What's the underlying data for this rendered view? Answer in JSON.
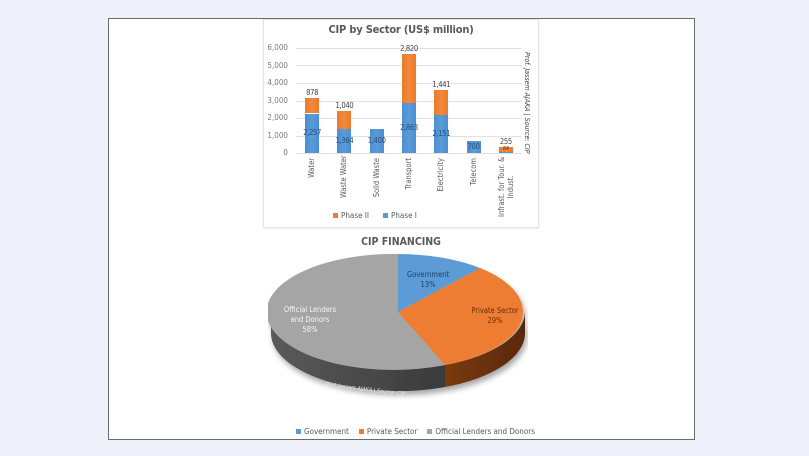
{
  "chart_data": [
    {
      "type": "bar",
      "stacked": true,
      "title": "CIP by Sector (US$ million)",
      "xlabel": "",
      "ylabel": "",
      "ylim": [
        0,
        6000
      ],
      "yticks": [
        "6,000",
        "5,000",
        "4,000",
        "3,000",
        "2,000",
        "1,000",
        "0"
      ],
      "categories": [
        "Water",
        "Waste Water",
        "Solid Waste",
        "Transport",
        "Electricity",
        "Telecom",
        "Infrast. for Tour. & Indust."
      ],
      "series": [
        {
          "name": "Phase I",
          "color": "#5b9bd5",
          "values": [
            2257,
            1364,
            1400,
            2863,
            2151,
            700,
            84
          ],
          "labels": [
            "2,257",
            "1,364",
            "1,400",
            "2,863",
            "2,151",
            "700",
            "84"
          ]
        },
        {
          "name": "Phase II",
          "color": "#ed7d31",
          "values": [
            878,
            1040,
            0,
            2820,
            1441,
            0,
            255
          ],
          "labels": [
            "878",
            "1,040",
            "",
            "2,820",
            "1,441",
            "",
            "255"
          ]
        }
      ],
      "legend": {
        "position": "bottom",
        "entries": [
          "Phase II",
          "Phase I"
        ]
      },
      "grid": true,
      "annotation": "Prof. Jassem AJAKA | Source: CIP"
    },
    {
      "type": "pie",
      "title": "CIP FINANCING",
      "categories": [
        "Government",
        "Private Sector",
        "Official Lenders and Donors"
      ],
      "values": [
        13,
        29,
        58
      ],
      "labels": [
        "Government\n13%",
        "Private Sector\n29%",
        "Official Lenders\nand Donors\n58%"
      ],
      "colors": [
        "#5b9bd5",
        "#ed7d31",
        "#a5a5a5"
      ],
      "legend": {
        "position": "bottom",
        "entries": [
          "Government",
          "Private Sector",
          "Official Lenders and Donors"
        ]
      },
      "annotation": "Prof. Jassem AJAKA | Source: CIP",
      "style": "3d"
    }
  ],
  "bar": {
    "title": "CIP by Sector (US$ million)",
    "yticks": [
      "6,000",
      "5,000",
      "4,000",
      "3,000",
      "2,000",
      "1,000",
      "0"
    ],
    "categories": [
      "Water",
      "Waste Water",
      "Solid Waste",
      "Transport",
      "Electricity",
      "Telecom",
      "Infrast. for Tour. &",
      "Indust."
    ],
    "legend": {
      "phase2": "Phase II",
      "phase1": "Phase I"
    },
    "watermark": "Prof. Jassem AJAKA | Source: CIP",
    "colors": {
      "phase1": "#5b9bd5",
      "phase2": "#ed7d31"
    }
  },
  "pie": {
    "title": "CIP FINANCING",
    "gov": {
      "name": "Government",
      "pct": "13%"
    },
    "priv": {
      "name": "Private Sector",
      "pct": "29%"
    },
    "off": {
      "line1": "Official Lenders",
      "line2": "and Donors",
      "pct": "58%"
    },
    "legend": [
      "Government",
      "Private Sector",
      "Official Lenders and Donors"
    ],
    "watermark": "Prof. Jassem AJAKA | Source: CIP"
  }
}
